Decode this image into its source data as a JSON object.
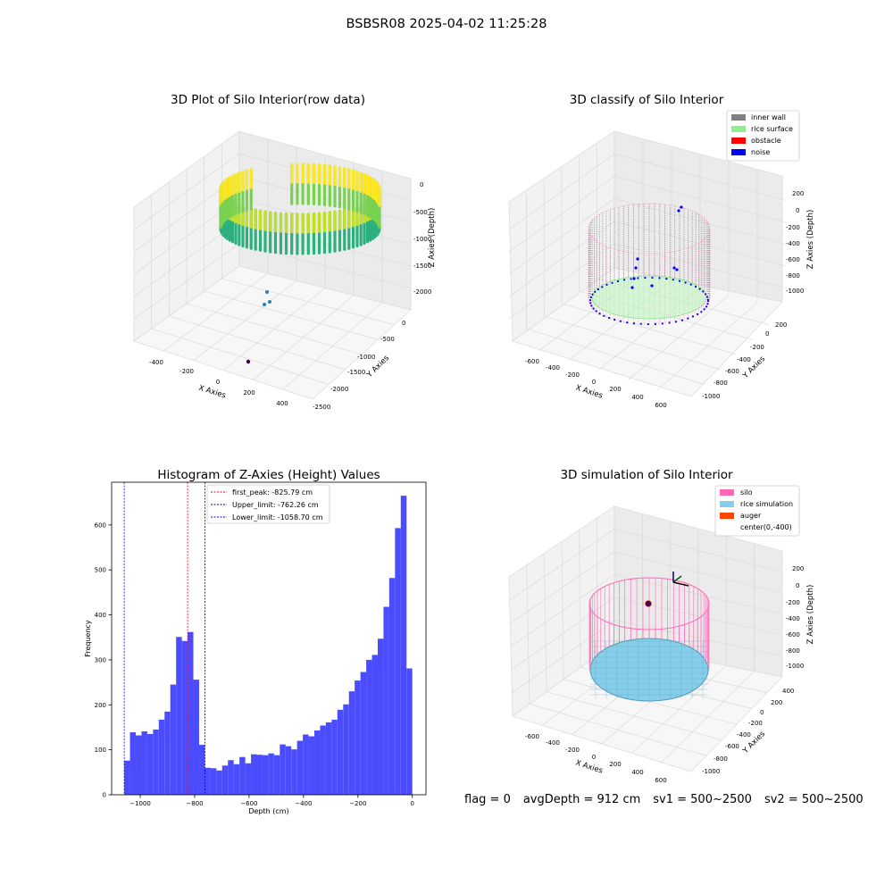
{
  "figure_title": "BSBSR08 2025-04-02 11:25:28",
  "status": {
    "flag": "flag = 0",
    "avg_depth": "avgDepth = 912 cm",
    "sv1": "sv1 = 500~2500",
    "sv2": "sv2 = 500~2500"
  },
  "colors": {
    "hist_bar": "#4c4cff",
    "inner_wall": "#808080",
    "rice_surface": "#90ee90",
    "obstacle": "#ff0000",
    "noise": "#0000ff",
    "silo": "#ff69b4",
    "rice_simulation": "#87ceeb",
    "auger": "#ff4500"
  },
  "chart_data": [
    {
      "type": "scatter",
      "subtype": "3d-scatter",
      "title": "3D Plot of Silo Interior(row data)",
      "xlabel": "X Axies",
      "ylabel": "Y Axies",
      "zlabel": "Z Axies (Depth)",
      "x_ticks": [
        "-400",
        "-200",
        "0",
        "200",
        "400"
      ],
      "y_ticks": [
        "0",
        "-500",
        "-1000",
        "-1500",
        "-2000",
        "-2500"
      ],
      "z_ticks": [
        "0",
        "-500",
        "-1000",
        "-1500",
        "-2000"
      ],
      "colormap": "viridis",
      "grid": true
    },
    {
      "type": "scatter",
      "subtype": "3d-scatter",
      "title": "3D classify of Silo Interior",
      "xlabel": "X Axies",
      "ylabel": "Y Axies",
      "zlabel": "Z Axies (Depth)",
      "x_ticks": [
        "-600",
        "-400",
        "-200",
        "0",
        "200",
        "400",
        "600"
      ],
      "y_ticks": [
        "200",
        "0",
        "-200",
        "-400",
        "-600",
        "-800",
        "-1000"
      ],
      "z_ticks": [
        "200",
        "0",
        "-200",
        "-400",
        "-600",
        "-800",
        "-1000"
      ],
      "legend": [
        "inner wall",
        "rice surface",
        "obstacle",
        "noise"
      ],
      "legend_placement": "top-right",
      "grid": true
    },
    {
      "type": "bar",
      "subtype": "histogram",
      "title": "Histogram of Z-Axies (Height) Values",
      "xlabel": "Depth (cm)",
      "ylabel": "Frequency",
      "xlim": [
        -1105,
        50
      ],
      "ylim": [
        0,
        695
      ],
      "x_ticks": [
        -1000,
        -800,
        -600,
        -400,
        -200,
        0
      ],
      "y_ticks": [
        0,
        100,
        200,
        300,
        400,
        500,
        600
      ],
      "bin_start": -1058.7,
      "bin_width": 21.17,
      "values": [
        76,
        139,
        132,
        141,
        135,
        145,
        167,
        185,
        245,
        351,
        342,
        362,
        256,
        111,
        60,
        59,
        54,
        65,
        77,
        68,
        84,
        70,
        90,
        89,
        88,
        92,
        88,
        112,
        108,
        101,
        120,
        134,
        130,
        143,
        154,
        161,
        167,
        189,
        201,
        230,
        254,
        273,
        300,
        311,
        347,
        418,
        482,
        593,
        665,
        281
      ],
      "vlines": [
        {
          "label": "first_peak: -825.79 cm",
          "x": -825.79,
          "color": "#ff0000"
        },
        {
          "label": "Upper_limit: -762.26 cm",
          "x": -762.26,
          "color": "#00008b"
        },
        {
          "label": "Lower_limit: -1058.70 cm",
          "x": -1058.7,
          "color": "#0000ff"
        }
      ],
      "legend_placement": "top-center",
      "grid": false
    },
    {
      "type": "scatter",
      "subtype": "3d-surface",
      "title": "3D simulation of Silo Interior",
      "xlabel": "X Axies",
      "ylabel": "Y Axies",
      "zlabel": "Z Axies (Depth)",
      "x_ticks": [
        "-600",
        "-400",
        "-200",
        "0",
        "200",
        "400",
        "600"
      ],
      "y_ticks": [
        "400",
        "200",
        "0",
        "-200",
        "-400",
        "-600",
        "-800",
        "-1000"
      ],
      "z_ticks": [
        "200",
        "0",
        "-200",
        "-400",
        "-600",
        "-800",
        "-1000"
      ],
      "legend": [
        "silo",
        "rice simulation",
        "auger",
        "center(0,-400)"
      ],
      "legend_placement": "top-right",
      "grid": true
    }
  ]
}
